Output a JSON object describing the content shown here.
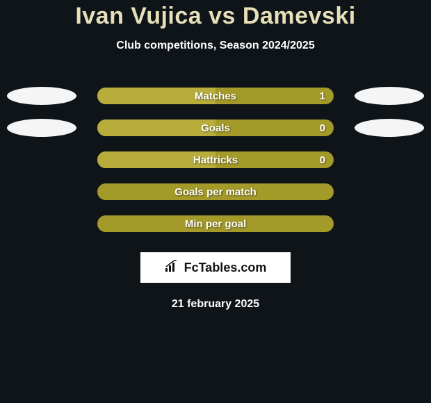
{
  "title": "Ivan Vujica vs Damevski",
  "subtitle": "Club competitions, Season 2024/2025",
  "colors": {
    "background": "#0f1419",
    "title_color": "#e6dfb8",
    "bar_base": "#a49a2a",
    "bar_fill": "#b8ad3a",
    "ellipse": "#f5f5f5",
    "text": "#ffffff"
  },
  "stats": [
    {
      "label": "Matches",
      "value": "1",
      "show_ellipses": true,
      "fill_pct": 50
    },
    {
      "label": "Goals",
      "value": "0",
      "show_ellipses": true,
      "fill_pct": 50
    },
    {
      "label": "Hattricks",
      "value": "0",
      "show_ellipses": false,
      "fill_pct": 50
    },
    {
      "label": "Goals per match",
      "value": "",
      "show_ellipses": false,
      "fill_pct": 0
    },
    {
      "label": "Min per goal",
      "value": "",
      "show_ellipses": false,
      "fill_pct": 0
    }
  ],
  "logo_text": "FcTables.com",
  "date": "21 february 2025"
}
